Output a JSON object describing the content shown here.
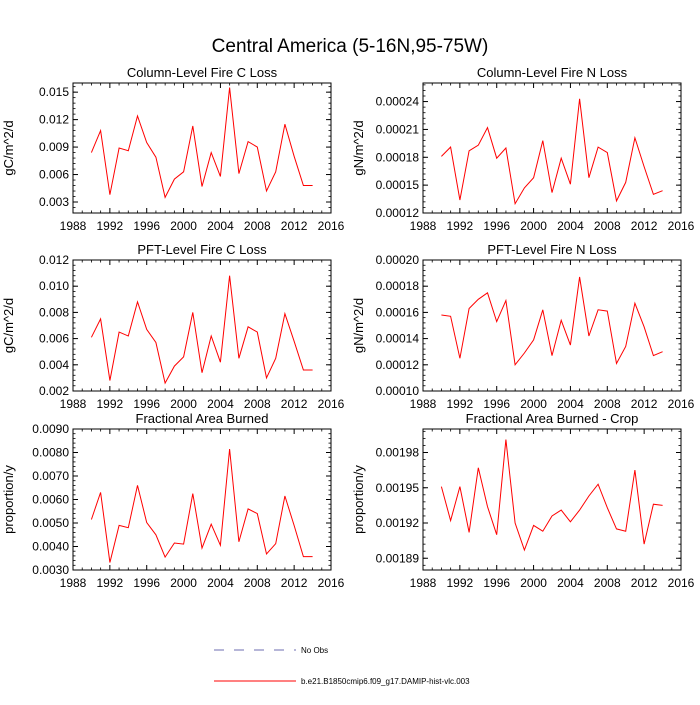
{
  "page_title": "Central America (5-16N,95-75W)",
  "colors": {
    "series": "#ff0000",
    "obs": "#6c6cb0",
    "axis": "#000000"
  },
  "legend": [
    {
      "label": "No Obs",
      "style": "dashed",
      "color": "#6c6cb0"
    },
    {
      "label": "b.e21.B1850cmip6.f09_g17.DAMIP-hist-vlc.003",
      "style": "solid",
      "color": "#ff0000"
    }
  ],
  "chart_data": [
    {
      "type": "line",
      "title": "Column-Level Fire C Loss",
      "ylabel": "gC/m^2/d",
      "xlim": [
        1988,
        2016
      ],
      "ylim": [
        0.0018,
        0.016
      ],
      "xticks": [
        "1988",
        "1992",
        "1996",
        "2000",
        "2004",
        "2008",
        "2012",
        "2016"
      ],
      "yticks": [
        "0.003",
        "0.006",
        "0.009",
        "0.012",
        "0.015"
      ],
      "x": [
        1990,
        1991,
        1992,
        1993,
        1994,
        1995,
        1996,
        1997,
        1998,
        1999,
        2000,
        2001,
        2002,
        2003,
        2004,
        2005,
        2006,
        2007,
        2008,
        2009,
        2010,
        2011,
        2012,
        2013,
        2014
      ],
      "values": [
        0.0084,
        0.0108,
        0.0038,
        0.0089,
        0.0086,
        0.0124,
        0.0095,
        0.0079,
        0.0035,
        0.0055,
        0.0063,
        0.0113,
        0.0047,
        0.0084,
        0.0058,
        0.0155,
        0.0061,
        0.0096,
        0.009,
        0.0042,
        0.0063,
        0.0115,
        0.008,
        0.0048,
        0.0048
      ]
    },
    {
      "type": "line",
      "title": "Column-Level Fire N Loss",
      "ylabel": "gN/m^2/d",
      "xlim": [
        1988,
        2016
      ],
      "ylim": [
        0.00012,
        0.00026
      ],
      "xticks": [
        "1988",
        "1992",
        "1996",
        "2000",
        "2004",
        "2008",
        "2012",
        "2016"
      ],
      "yticks": [
        "0.00012",
        "0.00015",
        "0.00018",
        "0.00021",
        "0.00024"
      ],
      "x": [
        1990,
        1991,
        1992,
        1993,
        1994,
        1995,
        1996,
        1997,
        1998,
        1999,
        2000,
        2001,
        2002,
        2003,
        2004,
        2005,
        2006,
        2007,
        2008,
        2009,
        2010,
        2011,
        2012,
        2013,
        2014
      ],
      "values": [
        0.000181,
        0.000191,
        0.000134,
        0.000187,
        0.000193,
        0.000212,
        0.000179,
        0.00019,
        0.00013,
        0.000147,
        0.000158,
        0.000198,
        0.000142,
        0.000179,
        0.000151,
        0.000243,
        0.000158,
        0.000191,
        0.000185,
        0.000133,
        0.000153,
        0.000201,
        0.00017,
        0.00014,
        0.000144
      ]
    },
    {
      "type": "line",
      "title": "PFT-Level Fire C Loss",
      "ylabel": "gC/m^2/d",
      "xlim": [
        1988,
        2016
      ],
      "ylim": [
        0.002,
        0.012
      ],
      "xticks": [
        "1988",
        "1992",
        "1996",
        "2000",
        "2004",
        "2008",
        "2012",
        "2016"
      ],
      "yticks": [
        "0.002",
        "0.004",
        "0.006",
        "0.008",
        "0.010",
        "0.012"
      ],
      "x": [
        1990,
        1991,
        1992,
        1993,
        1994,
        1995,
        1996,
        1997,
        1998,
        1999,
        2000,
        2001,
        2002,
        2003,
        2004,
        2005,
        2006,
        2007,
        2008,
        2009,
        2010,
        2011,
        2012,
        2013,
        2014
      ],
      "values": [
        0.0061,
        0.0075,
        0.0028,
        0.0065,
        0.0062,
        0.0088,
        0.0067,
        0.0057,
        0.0026,
        0.0039,
        0.0046,
        0.008,
        0.0034,
        0.0062,
        0.0042,
        0.0108,
        0.0045,
        0.0069,
        0.0065,
        0.003,
        0.0045,
        0.0079,
        0.0058,
        0.0036,
        0.0036
      ]
    },
    {
      "type": "line",
      "title": "PFT-Level Fire N Loss",
      "ylabel": "gN/m^2/d",
      "xlim": [
        1988,
        2016
      ],
      "ylim": [
        0.0001,
        0.0002
      ],
      "xticks": [
        "1988",
        "1992",
        "1996",
        "2000",
        "2004",
        "2008",
        "2012",
        "2016"
      ],
      "yticks": [
        "0.00010",
        "0.00012",
        "0.00014",
        "0.00016",
        "0.00018",
        "0.00020"
      ],
      "x": [
        1990,
        1991,
        1992,
        1993,
        1994,
        1995,
        1996,
        1997,
        1998,
        1999,
        2000,
        2001,
        2002,
        2003,
        2004,
        2005,
        2006,
        2007,
        2008,
        2009,
        2010,
        2011,
        2012,
        2013,
        2014
      ],
      "values": [
        0.000158,
        0.000157,
        0.000125,
        0.000163,
        0.00017,
        0.000175,
        0.000153,
        0.000169,
        0.00012,
        0.000129,
        0.000139,
        0.000162,
        0.000127,
        0.000154,
        0.000135,
        0.000187,
        0.000142,
        0.000162,
        0.000161,
        0.000121,
        0.000134,
        0.000167,
        0.000149,
        0.000127,
        0.00013
      ]
    },
    {
      "type": "line",
      "title": "Fractional Area Burned",
      "ylabel": "proportion/y",
      "xlim": [
        1988,
        2016
      ],
      "ylim": [
        0.003,
        0.009
      ],
      "xticks": [
        "1988",
        "1992",
        "1996",
        "2000",
        "2004",
        "2008",
        "2012",
        "2016"
      ],
      "yticks": [
        "0.0030",
        "0.0040",
        "0.0050",
        "0.0060",
        "0.0070",
        "0.0080",
        "0.0090"
      ],
      "x": [
        1990,
        1991,
        1992,
        1993,
        1994,
        1995,
        1996,
        1997,
        1998,
        1999,
        2000,
        2001,
        2002,
        2003,
        2004,
        2005,
        2006,
        2007,
        2008,
        2009,
        2010,
        2011,
        2012,
        2013,
        2014
      ],
      "values": [
        0.00515,
        0.0063,
        0.00332,
        0.0049,
        0.0048,
        0.0066,
        0.00502,
        0.0045,
        0.00355,
        0.00415,
        0.0041,
        0.00625,
        0.00393,
        0.00495,
        0.00405,
        0.00815,
        0.0042,
        0.0056,
        0.0054,
        0.00368,
        0.00412,
        0.00615,
        0.0049,
        0.00357,
        0.00357
      ]
    },
    {
      "type": "line",
      "title": "Fractional Area Burned - Crop",
      "ylabel": "proportion/y",
      "xlim": [
        1988,
        2016
      ],
      "ylim": [
        0.00188,
        0.002
      ],
      "xticks": [
        "1988",
        "1992",
        "1996",
        "2000",
        "2004",
        "2008",
        "2012",
        "2016"
      ],
      "yticks": [
        "0.00189",
        "0.00192",
        "0.00195",
        "0.00198"
      ],
      "x": [
        1990,
        1991,
        1992,
        1993,
        1994,
        1995,
        1996,
        1997,
        1998,
        1999,
        2000,
        2001,
        2002,
        2003,
        2004,
        2005,
        2006,
        2007,
        2008,
        2009,
        2010,
        2011,
        2012,
        2013,
        2014
      ],
      "values": [
        0.001951,
        0.001922,
        0.001951,
        0.001912,
        0.001967,
        0.001934,
        0.00191,
        0.001991,
        0.00192,
        0.001897,
        0.001918,
        0.001913,
        0.001926,
        0.001931,
        0.001921,
        0.001931,
        0.001943,
        0.001953,
        0.001933,
        0.001915,
        0.001913,
        0.001965,
        0.001902,
        0.001936,
        0.001935
      ]
    }
  ]
}
